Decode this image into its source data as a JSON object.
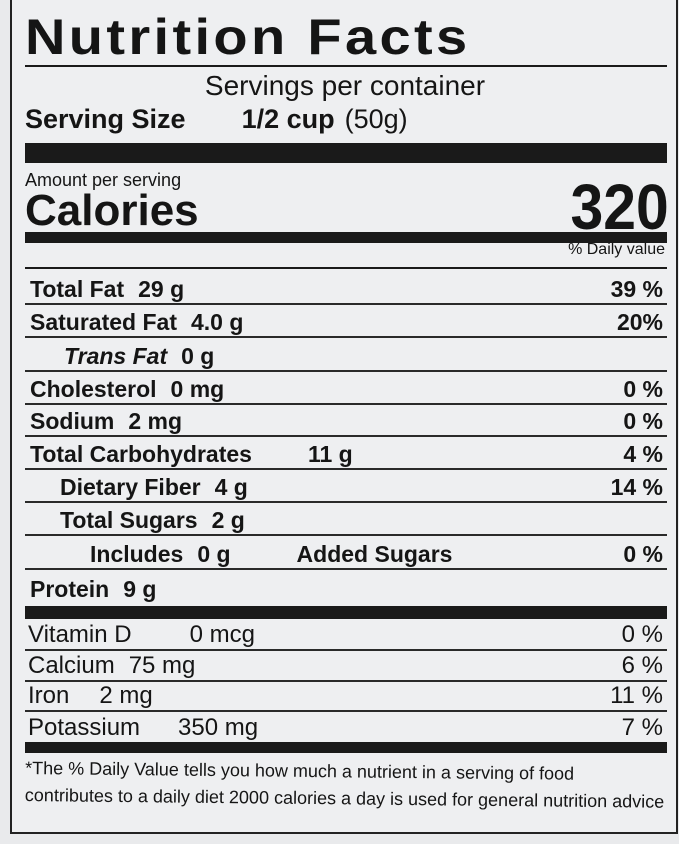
{
  "title": "Nutrition Facts",
  "servings_per_container": "Servings per container",
  "serving_size": {
    "label": "Serving Size",
    "value": "1/2 cup",
    "grams": "(50g)"
  },
  "amount_per_serving": "Amount per serving",
  "calories": {
    "label": "Calories",
    "value": "320"
  },
  "daily_value_header": "% Daily value",
  "nutrients": [
    {
      "label": "Total Fat",
      "amount": "29 g",
      "dv": "39 %"
    },
    {
      "label": "Saturated Fat",
      "amount": "4.0  g",
      "dv": "20%"
    },
    {
      "label": "Trans Fat",
      "amount": "0 g",
      "dv": ""
    },
    {
      "label": "Cholesterol",
      "amount": "0 mg",
      "dv": "0 %"
    },
    {
      "label": "Sodium",
      "amount": "2 mg",
      "dv": "0 %"
    },
    {
      "label": "Total Carbohydrates",
      "amount": "11 g",
      "dv": "4 %"
    },
    {
      "label": "Dietary Fiber",
      "amount": "4 g",
      "dv": "14 %"
    },
    {
      "label": "Total Sugars",
      "amount": "2 g",
      "dv": ""
    },
    {
      "label": "Includes",
      "amount": "0 g",
      "extra": "Added Sugars",
      "dv": "0 %"
    },
    {
      "label": "Protein",
      "amount": "9 g",
      "dv": ""
    }
  ],
  "vitamins": [
    {
      "label": "Vitamin D",
      "amount": "0 mcg",
      "dv": "0 %"
    },
    {
      "label": "Calcium",
      "amount": "75 mg",
      "dv": "6 %"
    },
    {
      "label": "Iron",
      "amount": "2 mg",
      "dv": "11 %"
    },
    {
      "label": "Potassium",
      "amount": "350 mg",
      "dv": "7 %"
    }
  ],
  "footnote": "*The % Daily Value tells you how much a nutrient in a serving of food contributes to a daily diet 2000 calories a day is used for general nutrition advice"
}
